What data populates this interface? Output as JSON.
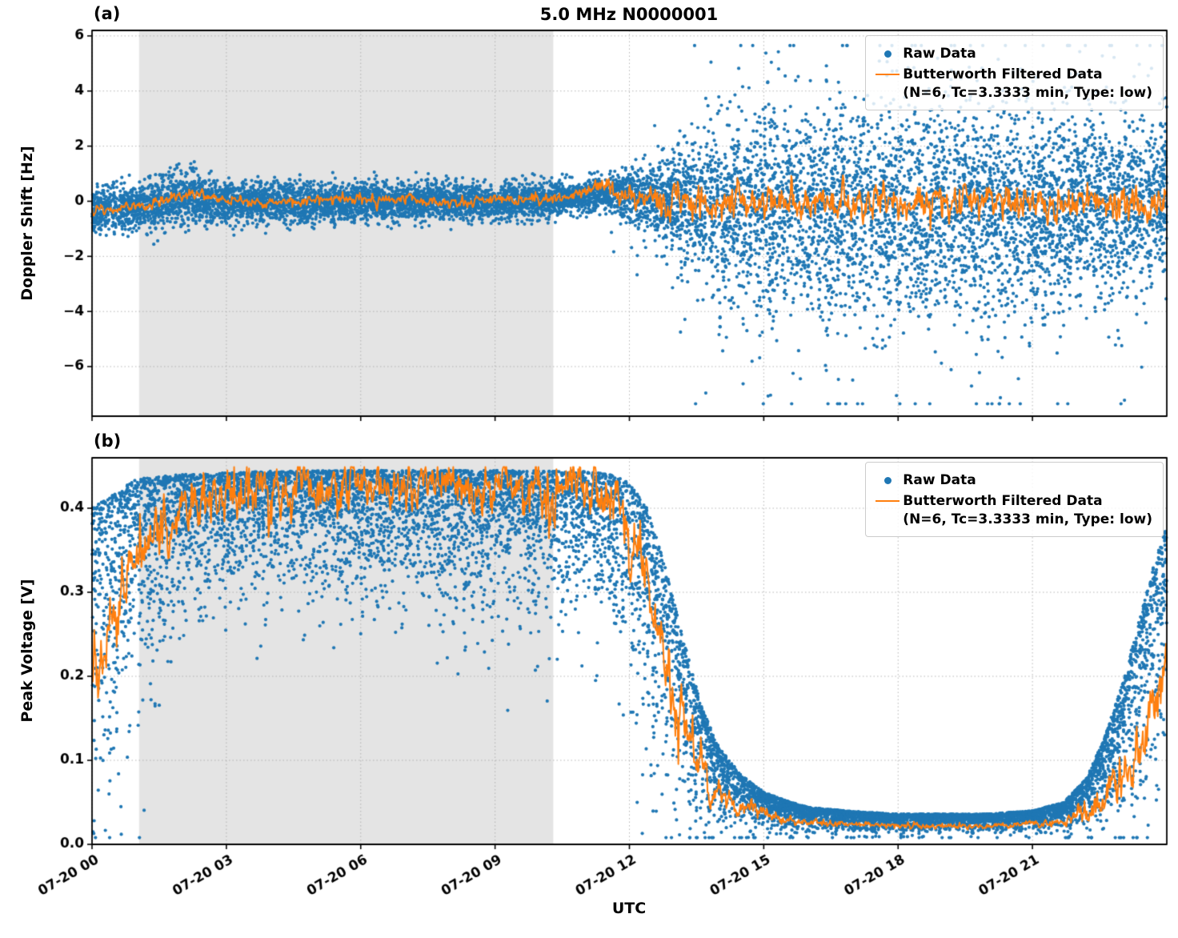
{
  "chart_data": [
    {
      "type": "scatter",
      "panel_label": "(a)",
      "title": "5.0 MHz N0000001",
      "ylabel": "Doppler Shift [Hz]",
      "xlabel": "",
      "ylim": [
        -7.8,
        6.2
      ],
      "yticks": [
        -6,
        -4,
        -2,
        0,
        2,
        4,
        6
      ],
      "ytick_labels": [
        "−6",
        "−4",
        "−2",
        "0",
        "2",
        "4",
        "6"
      ],
      "xlim": [
        0,
        24
      ],
      "xticks_hours": [
        0,
        3,
        6,
        9,
        12,
        15,
        18,
        21
      ],
      "xtick_labels": [
        "07-20 00",
        "07-20 03",
        "07-20 06",
        "07-20 09",
        "07-20 12",
        "07-20 15",
        "07-20 18",
        "07-20 21"
      ],
      "shaded_region_hours": [
        1.05,
        10.3
      ],
      "grid": "dotted",
      "legend_position": "upper right",
      "colors": {
        "raw": "#1f77b4",
        "filtered": "#ff7f0e",
        "shade": "#e4e4e4",
        "grid": "#a8a8a8"
      },
      "legend": {
        "raw_label": "Raw Data",
        "filtered_label": "Butterworth Filtered Data",
        "filtered_sublabel": "(N=6, Tc=3.3333 min, Type: low)"
      },
      "scatter_model": {
        "n_points": 10500,
        "center_pts": [
          [
            0,
            -0.35
          ],
          [
            0.7,
            -0.25
          ],
          [
            1.5,
            -0.05
          ],
          [
            2.2,
            0.15
          ],
          [
            3,
            -0.1
          ],
          [
            4,
            -0.05
          ],
          [
            5,
            -0.1
          ],
          [
            6,
            0
          ],
          [
            7,
            -0.05
          ],
          [
            8,
            0
          ],
          [
            9,
            -0.05
          ],
          [
            10,
            0.05
          ],
          [
            10.8,
            0.1
          ],
          [
            11.3,
            0.35
          ],
          [
            11.8,
            0.25
          ],
          [
            12.5,
            0.1
          ],
          [
            13,
            0
          ],
          [
            14,
            -0.1
          ],
          [
            16,
            -0.25
          ],
          [
            18,
            -0.2
          ],
          [
            20,
            -0.25
          ],
          [
            22,
            -0.1
          ],
          [
            23,
            -0.05
          ],
          [
            24,
            0
          ]
        ],
        "spread_pts": [
          [
            0,
            0.42
          ],
          [
            1,
            0.4
          ],
          [
            2,
            0.5
          ],
          [
            2.5,
            0.45
          ],
          [
            3,
            0.4
          ],
          [
            5,
            0.36
          ],
          [
            7,
            0.36
          ],
          [
            9,
            0.34
          ],
          [
            10,
            0.32
          ],
          [
            10.8,
            0.28
          ],
          [
            11.3,
            0.3
          ],
          [
            11.8,
            0.4
          ],
          [
            12.3,
            0.55
          ],
          [
            13,
            0.85
          ],
          [
            13.5,
            1.15
          ],
          [
            14,
            1.45
          ],
          [
            15,
            1.65
          ],
          [
            16,
            1.8
          ],
          [
            17,
            1.85
          ],
          [
            18,
            1.9
          ],
          [
            19,
            1.88
          ],
          [
            20,
            1.82
          ],
          [
            21,
            1.75
          ],
          [
            22,
            1.68
          ],
          [
            23,
            1.5
          ],
          [
            23.5,
            1.35
          ],
          [
            24,
            1.25
          ]
        ],
        "heavy_tail_min_hour": 11.5,
        "heavy_tail_frac": 0.06,
        "heavy_tail_scale": 2.2,
        "clip": [
          -7.35,
          5.65
        ]
      },
      "filtered_model": {
        "base_pts": [
          [
            0,
            -0.3
          ],
          [
            0.7,
            -0.2
          ],
          [
            1.5,
            -0.05
          ],
          [
            2.2,
            0.3
          ],
          [
            2.6,
            0.15
          ],
          [
            3.5,
            -0.05
          ],
          [
            5,
            0
          ],
          [
            6.5,
            0.05
          ],
          [
            8,
            0
          ],
          [
            9.5,
            0.05
          ],
          [
            10.5,
            0.15
          ],
          [
            11,
            0.4
          ],
          [
            11.4,
            0.55
          ],
          [
            11.8,
            0.3
          ],
          [
            12.5,
            0.1
          ],
          [
            13,
            0
          ],
          [
            14,
            -0.05
          ],
          [
            16,
            0
          ],
          [
            18,
            -0.05
          ],
          [
            20,
            0
          ],
          [
            22,
            -0.05
          ],
          [
            23,
            0
          ],
          [
            24,
            -0.1
          ]
        ],
        "amp_pts": [
          [
            0,
            0.1
          ],
          [
            10,
            0.1
          ],
          [
            11,
            0.12
          ],
          [
            11.8,
            0.2
          ],
          [
            12.5,
            0.3
          ],
          [
            13.5,
            0.35
          ],
          [
            15,
            0.35
          ],
          [
            20,
            0.35
          ],
          [
            22,
            0.33
          ],
          [
            23.5,
            0.28
          ],
          [
            24,
            0.24
          ]
        ],
        "step_hours": 0.0167,
        "clip": [
          -1.15,
          1.15
        ]
      }
    },
    {
      "type": "scatter",
      "panel_label": "(b)",
      "title": "",
      "ylabel": "Peak Voltage [V]",
      "xlabel": "UTC",
      "ylim": [
        0,
        0.46
      ],
      "yticks": [
        0,
        0.1,
        0.2,
        0.3,
        0.4
      ],
      "ytick_labels": [
        "0.0",
        "0.1",
        "0.2",
        "0.3",
        "0.4"
      ],
      "xlim": [
        0,
        24
      ],
      "xticks_hours": [
        0,
        3,
        6,
        9,
        12,
        15,
        18,
        21
      ],
      "xtick_labels": [
        "07-20 00",
        "07-20 03",
        "07-20 06",
        "07-20 09",
        "07-20 12",
        "07-20 15",
        "07-20 18",
        "07-20 21"
      ],
      "shaded_region_hours": [
        1.05,
        10.3
      ],
      "grid": "dotted",
      "legend_position": "upper right",
      "colors": {
        "raw": "#1f77b4",
        "filtered": "#ff7f0e",
        "shade": "#e4e4e4",
        "grid": "#a8a8a8"
      },
      "legend": {
        "raw_label": "Raw Data",
        "filtered_label": "Butterworth Filtered Data",
        "filtered_sublabel": "(N=6, Tc=3.3333 min, Type: low)"
      },
      "band_model": {
        "n_points": 10500,
        "hi_pts": [
          [
            0,
            0.4
          ],
          [
            0.3,
            0.41
          ],
          [
            1,
            0.435
          ],
          [
            2,
            0.44
          ],
          [
            4,
            0.444
          ],
          [
            6,
            0.445
          ],
          [
            9,
            0.445
          ],
          [
            11,
            0.444
          ],
          [
            11.6,
            0.44
          ],
          [
            12,
            0.43
          ],
          [
            12.4,
            0.4
          ],
          [
            12.8,
            0.33
          ],
          [
            13.2,
            0.245
          ],
          [
            13.6,
            0.165
          ],
          [
            14,
            0.115
          ],
          [
            14.5,
            0.082
          ],
          [
            15,
            0.062
          ],
          [
            15.5,
            0.052
          ],
          [
            16,
            0.044
          ],
          [
            17,
            0.039
          ],
          [
            18,
            0.036
          ],
          [
            20,
            0.036
          ],
          [
            21,
            0.04
          ],
          [
            21.7,
            0.05
          ],
          [
            22.2,
            0.078
          ],
          [
            22.6,
            0.125
          ],
          [
            23,
            0.19
          ],
          [
            23.4,
            0.27
          ],
          [
            23.7,
            0.33
          ],
          [
            24,
            0.38
          ]
        ],
        "lo_pts": [
          [
            0,
            0.09
          ],
          [
            0.5,
            0.13
          ],
          [
            1,
            0.2
          ],
          [
            1.5,
            0.27
          ],
          [
            2,
            0.31
          ],
          [
            3,
            0.33
          ],
          [
            5,
            0.335
          ],
          [
            7,
            0.32
          ],
          [
            9,
            0.305
          ],
          [
            10,
            0.31
          ],
          [
            11,
            0.325
          ],
          [
            11.6,
            0.295
          ],
          [
            12,
            0.2
          ],
          [
            12.4,
            0.13
          ],
          [
            12.8,
            0.09
          ],
          [
            13.2,
            0.062
          ],
          [
            13.6,
            0.042
          ],
          [
            14,
            0.03
          ],
          [
            15,
            0.023
          ],
          [
            16,
            0.019
          ],
          [
            18,
            0.017
          ],
          [
            20,
            0.017
          ],
          [
            21,
            0.019
          ],
          [
            21.7,
            0.021
          ],
          [
            22.2,
            0.026
          ],
          [
            22.6,
            0.036
          ],
          [
            23,
            0.05
          ],
          [
            23.4,
            0.08
          ],
          [
            23.7,
            0.11
          ],
          [
            24,
            0.14
          ]
        ],
        "skew_power": 1.25,
        "skew_frac": 0.42,
        "uniform_frac": 0.07,
        "dip": {
          "h_range": [
            1.6,
            11.4
          ],
          "prob": 0.035,
          "depth_early": 0.1,
          "depth_late": 0.2,
          "late_after_hour": 6.5
        },
        "clip": [
          0.008,
          0.452
        ]
      },
      "filtered_model": {
        "base_pts": [
          [
            0,
            0.2
          ],
          [
            0.3,
            0.24
          ],
          [
            0.7,
            0.3
          ],
          [
            1.2,
            0.36
          ],
          [
            2,
            0.405
          ],
          [
            3,
            0.418
          ],
          [
            5,
            0.428
          ],
          [
            7,
            0.428
          ],
          [
            9,
            0.42
          ],
          [
            10.5,
            0.428
          ],
          [
            11.3,
            0.42
          ],
          [
            11.8,
            0.4
          ],
          [
            12.3,
            0.33
          ],
          [
            12.7,
            0.25
          ],
          [
            13,
            0.17
          ],
          [
            13.3,
            0.12
          ],
          [
            13.8,
            0.068
          ],
          [
            14.5,
            0.044
          ],
          [
            15.5,
            0.03
          ],
          [
            16,
            0.026
          ],
          [
            18,
            0.022
          ],
          [
            20,
            0.022
          ],
          [
            21.5,
            0.025
          ],
          [
            22.3,
            0.04
          ],
          [
            22.8,
            0.065
          ],
          [
            23.2,
            0.1
          ],
          [
            23.6,
            0.15
          ],
          [
            24,
            0.22
          ]
        ],
        "amp_pts": [
          [
            0,
            0.02
          ],
          [
            1,
            0.02
          ],
          [
            2,
            0.015
          ],
          [
            11,
            0.015
          ],
          [
            12,
            0.02
          ],
          [
            13,
            0.022
          ],
          [
            13.8,
            0.012
          ],
          [
            14.5,
            0.006
          ],
          [
            15.5,
            0.003
          ],
          [
            16,
            0.002
          ],
          [
            21,
            0.002
          ],
          [
            21.8,
            0.004
          ],
          [
            22.3,
            0.008
          ],
          [
            22.8,
            0.012
          ],
          [
            23.3,
            0.018
          ],
          [
            24,
            0.022
          ]
        ],
        "step_hours": 0.0167,
        "clip": [
          0.013,
          0.449
        ],
        "dip_prob": 0.008,
        "dip_size": 0.05,
        "dip_range_hours": [
          [
            1.5,
            13.5
          ],
          [
            21.5,
            24
          ]
        ]
      }
    }
  ]
}
